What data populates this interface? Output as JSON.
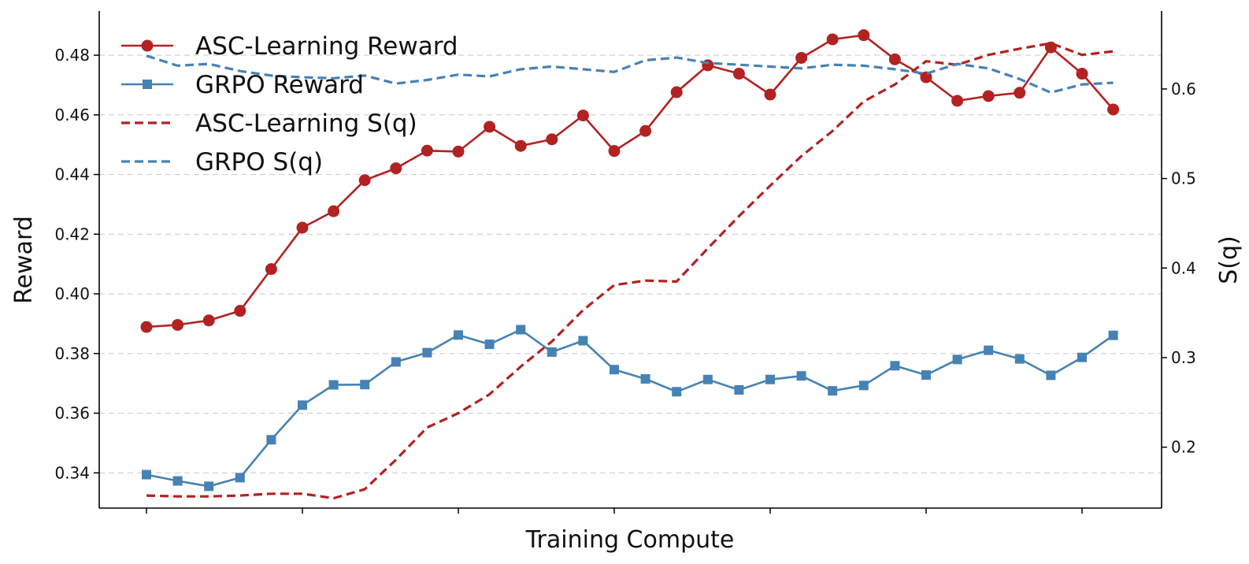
{
  "chart_data": {
    "type": "line",
    "title": "",
    "xlabel": "Training Compute",
    "ylabel_left": "Reward",
    "ylabel_right": "S(q)",
    "x_tick_labels_visible": false,
    "ylim_left": [
      0.3282,
      0.4948
    ],
    "ylim_right": [
      0.132,
      0.687
    ],
    "yticks_left": [
      "0.34",
      "0.36",
      "0.38",
      "0.40",
      "0.42",
      "0.44",
      "0.46",
      "0.48"
    ],
    "yticks_right": [
      "0.2",
      "0.3",
      "0.4",
      "0.5",
      "0.6"
    ],
    "grid": "horizontal dashed (left axis)",
    "legend_position": "top-left",
    "colors": {
      "asc": "#b22222",
      "grpo": "#4682b4"
    },
    "x": [
      0,
      1,
      2,
      3,
      4,
      5,
      6,
      7,
      8,
      9,
      10,
      11,
      12,
      13,
      14,
      15,
      16,
      17,
      18,
      19,
      20,
      21,
      22,
      23,
      24,
      25,
      26,
      27,
      28,
      29,
      30,
      31
    ],
    "series": [
      {
        "name": "ASC-Learning Reward",
        "axis": "left",
        "style": "solid",
        "marker": "circle",
        "color_key": "asc",
        "values": [
          0.3889,
          0.3896,
          0.3911,
          0.3943,
          0.4083,
          0.4222,
          0.4277,
          0.4381,
          0.4421,
          0.448,
          0.4477,
          0.456,
          0.4496,
          0.4518,
          0.4598,
          0.4479,
          0.4546,
          0.4676,
          0.4766,
          0.4738,
          0.4668,
          0.4791,
          0.4853,
          0.4867,
          0.4786,
          0.4726,
          0.4647,
          0.4663,
          0.4674,
          0.4826,
          0.4738,
          0.4618
        ]
      },
      {
        "name": "GRPO Reward",
        "axis": "left",
        "style": "solid",
        "marker": "square",
        "color_key": "grpo",
        "values": [
          0.3394,
          0.3373,
          0.3355,
          0.3384,
          0.3511,
          0.3627,
          0.3695,
          0.3696,
          0.3772,
          0.3803,
          0.3862,
          0.3831,
          0.388,
          0.3805,
          0.3843,
          0.3746,
          0.3715,
          0.3672,
          0.3713,
          0.3678,
          0.3713,
          0.3725,
          0.3675,
          0.3693,
          0.3759,
          0.3728,
          0.378,
          0.3811,
          0.3782,
          0.3727,
          0.3787,
          0.3861
        ]
      },
      {
        "name": "ASC-Learning S(q)",
        "axis": "right",
        "style": "dashed",
        "marker": "none",
        "color_key": "asc",
        "values": [
          0.146,
          0.145,
          0.145,
          0.146,
          0.148,
          0.148,
          0.143,
          0.153,
          0.186,
          0.222,
          0.238,
          0.259,
          0.29,
          0.318,
          0.353,
          0.381,
          0.386,
          0.385,
          0.422,
          0.458,
          0.492,
          0.525,
          0.553,
          0.586,
          0.605,
          0.631,
          0.627,
          0.638,
          0.645,
          0.651,
          0.638,
          0.642
        ]
      },
      {
        "name": "GRPO S(q)",
        "axis": "right",
        "style": "dashed",
        "marker": "none",
        "color_key": "grpo",
        "values": [
          0.637,
          0.626,
          0.628,
          0.62,
          0.615,
          0.613,
          0.612,
          0.615,
          0.606,
          0.61,
          0.616,
          0.614,
          0.622,
          0.625,
          0.622,
          0.619,
          0.632,
          0.635,
          0.629,
          0.627,
          0.625,
          0.623,
          0.627,
          0.626,
          0.622,
          0.617,
          0.628,
          0.623,
          0.611,
          0.596,
          0.605,
          0.607
        ]
      }
    ]
  }
}
